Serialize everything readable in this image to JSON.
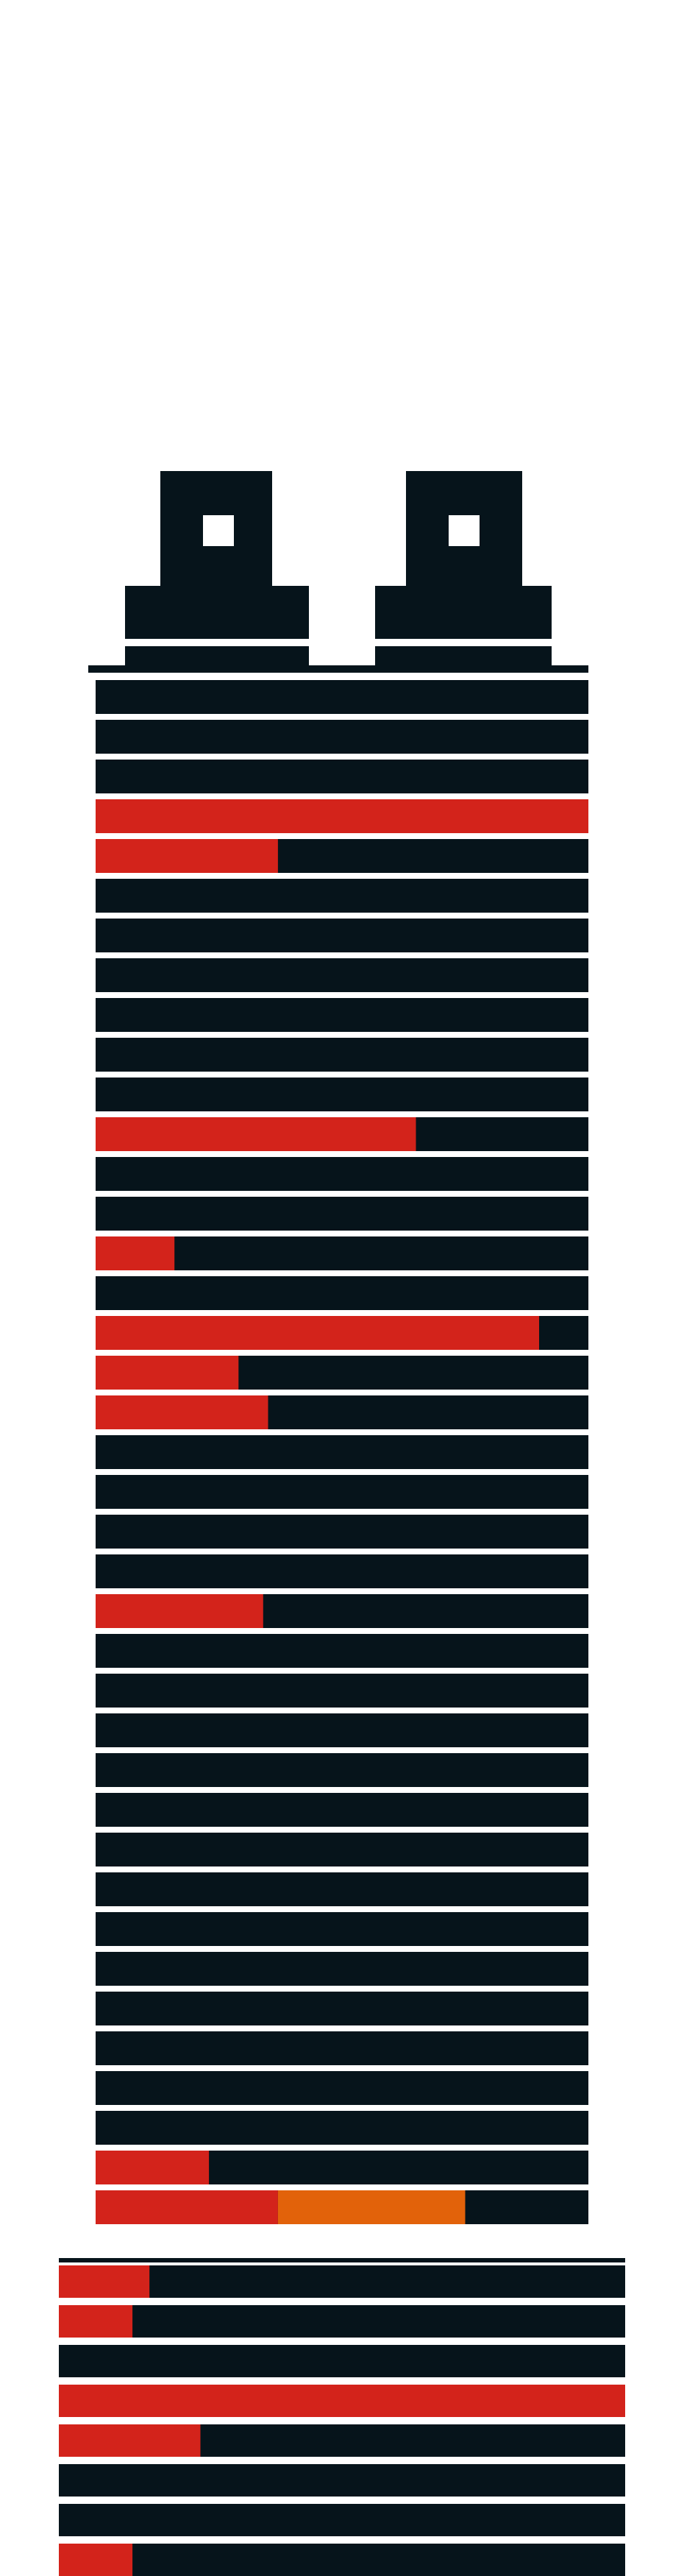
{
  "colors": {
    "background": "#ffffff",
    "floor": "#06141b",
    "occupied": "#d3231b",
    "highlight": "#e2620a"
  },
  "tower": {
    "upper_floors": [
      {
        "fill": 0.0,
        "extra": 0
      },
      {
        "fill": 0.0,
        "extra": 0
      },
      {
        "fill": 0.0,
        "extra": 0
      },
      {
        "fill": 1.0,
        "extra": 0
      },
      {
        "fill": 0.37,
        "extra": 0
      },
      {
        "fill": 0.0,
        "extra": 0
      },
      {
        "fill": 0.0,
        "extra": 0
      },
      {
        "fill": 0.0,
        "extra": 0
      },
      {
        "fill": 0.0,
        "extra": 0
      },
      {
        "fill": 0.0,
        "extra": 0
      },
      {
        "fill": 0.0,
        "extra": 0
      },
      {
        "fill": 0.65,
        "extra": 0
      },
      {
        "fill": 0.0,
        "extra": 0
      },
      {
        "fill": 0.0,
        "extra": 0
      },
      {
        "fill": 0.16,
        "extra": 0
      },
      {
        "fill": 0.0,
        "extra": 0
      },
      {
        "fill": 0.9,
        "extra": 0
      },
      {
        "fill": 0.29,
        "extra": 0
      },
      {
        "fill": 0.35,
        "extra": 0
      },
      {
        "fill": 0.0,
        "extra": 0
      },
      {
        "fill": 0.0,
        "extra": 0
      },
      {
        "fill": 0.0,
        "extra": 0
      },
      {
        "fill": 0.0,
        "extra": 0
      },
      {
        "fill": 0.34,
        "extra": 0
      },
      {
        "fill": 0.0,
        "extra": 0
      },
      {
        "fill": 0.0,
        "extra": 0
      },
      {
        "fill": 0.0,
        "extra": 0
      },
      {
        "fill": 0.0,
        "extra": 0
      },
      {
        "fill": 0.0,
        "extra": 0
      },
      {
        "fill": 0.0,
        "extra": 0
      },
      {
        "fill": 0.0,
        "extra": 0
      },
      {
        "fill": 0.0,
        "extra": 0
      },
      {
        "fill": 0.0,
        "extra": 0
      },
      {
        "fill": 0.0,
        "extra": 0
      },
      {
        "fill": 0.0,
        "extra": 0
      },
      {
        "fill": 0.0,
        "extra": 0
      },
      {
        "fill": 0.0,
        "extra": 0
      },
      {
        "fill": 0.23,
        "extra": 0
      },
      {
        "fill": 0.37,
        "extra": 0.38
      }
    ],
    "base_floors": [
      {
        "fill": 0.16,
        "extra": 0
      },
      {
        "fill": 0.13,
        "extra": 0
      },
      {
        "fill": 0.0,
        "extra": 0
      },
      {
        "fill": 1.0,
        "extra": 0
      },
      {
        "fill": 0.25,
        "extra": 0
      },
      {
        "fill": 0.0,
        "extra": 0
      },
      {
        "fill": 0.0,
        "extra": 0
      },
      {
        "fill": 0.13,
        "extra": 0
      }
    ]
  }
}
